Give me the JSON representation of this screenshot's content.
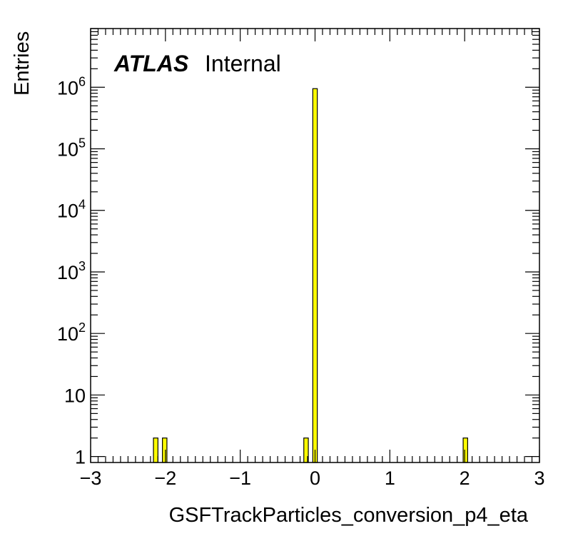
{
  "chart_data": {
    "type": "bar",
    "title": "",
    "xlabel": "GSFTrackParticles_conversion_p4_eta",
    "ylabel": "Entries",
    "xlim": [
      -3,
      3
    ],
    "ylim": [
      0.8,
      9000000
    ],
    "yscale": "log",
    "grid": false,
    "legend": "none",
    "bin_width": 0.06,
    "bars": [
      {
        "x": -2.13,
        "value": 2
      },
      {
        "x": -2.01,
        "value": 2
      },
      {
        "x": -0.12,
        "value": 2
      },
      {
        "x": 0.0,
        "value": 950000
      },
      {
        "x": 2.01,
        "value": 2
      }
    ],
    "x_ticks": [
      {
        "value": -3,
        "label": "−3"
      },
      {
        "value": -2,
        "label": "−2"
      },
      {
        "value": -1,
        "label": "−1"
      },
      {
        "value": 0,
        "label": "0"
      },
      {
        "value": 1,
        "label": "1"
      },
      {
        "value": 2,
        "label": "2"
      },
      {
        "value": 3,
        "label": "3"
      }
    ],
    "y_ticks": [
      {
        "value": 1,
        "base": "1",
        "exp": ""
      },
      {
        "value": 10,
        "base": "10",
        "exp": ""
      },
      {
        "value": 100,
        "base": "10",
        "exp": "2"
      },
      {
        "value": 1000,
        "base": "10",
        "exp": "3"
      },
      {
        "value": 10000,
        "base": "10",
        "exp": "4"
      },
      {
        "value": 100000,
        "base": "10",
        "exp": "5"
      },
      {
        "value": 1000000,
        "base": "10",
        "exp": "6"
      }
    ],
    "annotation": {
      "bold": "ATLAS",
      "text": "Internal"
    },
    "colors": {
      "bar_fill": "#ffff00",
      "bar_edge": "#000000",
      "axis": "#000000"
    }
  }
}
